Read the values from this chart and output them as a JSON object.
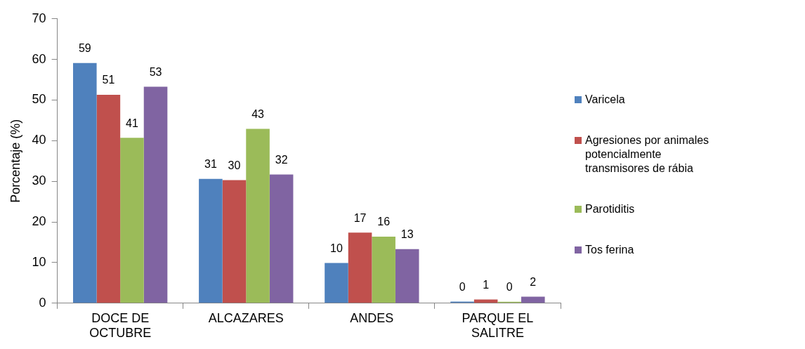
{
  "chart_data": {
    "type": "bar",
    "ylabel": "Porcentaje (%)",
    "categories": [
      "DOCE DE OCTUBRE",
      "ALCAZARES",
      "ANDES",
      "PARQUE EL SALITRE"
    ],
    "series": [
      {
        "name": "Varicela",
        "color": "#4f81bd",
        "values": [
          59.1,
          30.6,
          9.9,
          0.4
        ],
        "value_labels": [
          "59",
          "31",
          "10",
          "0"
        ]
      },
      {
        "name": "Agresiones por animales potencialmente transmisores de rábia",
        "color": "#c0504d",
        "values": [
          51.3,
          30.3,
          17.4,
          0.9
        ],
        "value_labels": [
          "51",
          "30",
          "17",
          "1"
        ]
      },
      {
        "name": "Parotiditis",
        "color": "#9bbb59",
        "values": [
          40.7,
          42.9,
          16.4,
          0.1
        ],
        "value_labels": [
          "41",
          "43",
          "16",
          "0"
        ]
      },
      {
        "name": "Tos ferina",
        "color": "#8064a2",
        "values": [
          53.3,
          31.7,
          13.3,
          1.6
        ],
        "value_labels": [
          "53",
          "32",
          "13",
          "2"
        ]
      }
    ],
    "ylim": [
      0,
      70
    ],
    "yticks": [
      0,
      10,
      20,
      30,
      40,
      50,
      60,
      70
    ],
    "grid": false,
    "legend": "right"
  }
}
